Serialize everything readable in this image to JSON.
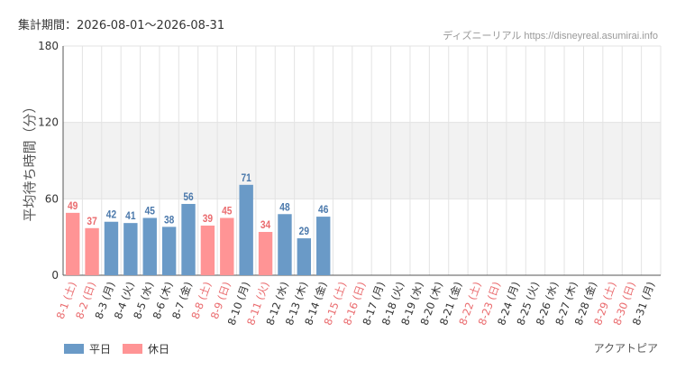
{
  "header": {
    "period": "集計期間：2026-08-01〜2026-08-31",
    "credit": "ディズニーリアル https://disneyreal.asumirai.info"
  },
  "attraction": "アクアトピア",
  "legend": {
    "weekday_label": "平日",
    "holiday_label": "休日"
  },
  "colors": {
    "weekday": "#6a9ac7",
    "holiday": "#ff9495",
    "weekday_text": "#4a78ab",
    "holiday_text": "#ea6b6e",
    "band": "#f2f2f2",
    "grid": "#e3e3e3"
  },
  "chart_data": {
    "type": "bar",
    "ylabel": "平均待ち時間（分）",
    "ylim": [
      0,
      180
    ],
    "yticks": [
      0,
      60,
      120,
      180
    ],
    "grid": true,
    "legend_position": "bottom-left",
    "categories": [
      "8-1 (土)",
      "8-2 (日)",
      "8-3 (月)",
      "8-4 (火)",
      "8-5 (水)",
      "8-6 (木)",
      "8-7 (金)",
      "8-8 (土)",
      "8-9 (日)",
      "8-10 (月)",
      "8-11 (火)",
      "8-12 (水)",
      "8-13 (木)",
      "8-14 (金)",
      "8-15 (土)",
      "8-16 (日)",
      "8-17 (月)",
      "8-18 (火)",
      "8-19 (水)",
      "8-20 (木)",
      "8-21 (金)",
      "8-22 (土)",
      "8-23 (日)",
      "8-24 (月)",
      "8-25 (火)",
      "8-26 (水)",
      "8-27 (木)",
      "8-28 (金)",
      "8-29 (土)",
      "8-30 (日)",
      "8-31 (月)"
    ],
    "values": [
      49,
      37,
      42,
      41,
      45,
      38,
      56,
      39,
      45,
      71,
      34,
      48,
      29,
      46,
      null,
      null,
      null,
      null,
      null,
      null,
      null,
      null,
      null,
      null,
      null,
      null,
      null,
      null,
      null,
      null,
      null
    ],
    "day_types": [
      "holiday",
      "holiday",
      "weekday",
      "weekday",
      "weekday",
      "weekday",
      "weekday",
      "holiday",
      "holiday",
      "weekday",
      "holiday",
      "weekday",
      "weekday",
      "weekday",
      "holiday",
      "holiday",
      "weekday",
      "weekday",
      "weekday",
      "weekday",
      "weekday",
      "holiday",
      "holiday",
      "weekday",
      "weekday",
      "weekday",
      "weekday",
      "weekday",
      "holiday",
      "holiday",
      "weekday"
    ]
  }
}
